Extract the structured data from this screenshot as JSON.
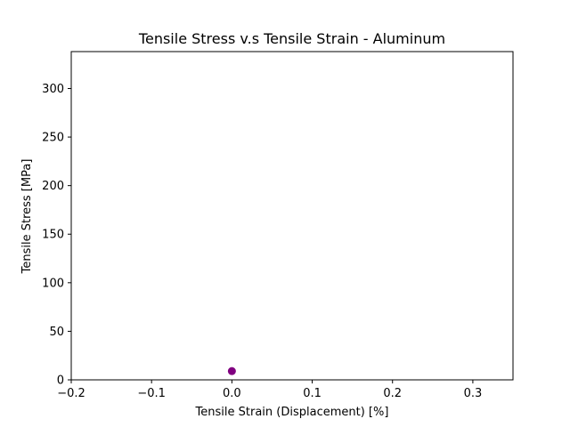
{
  "chart_data": {
    "type": "scatter",
    "title": "Tensile Stress v.s Tensile Strain - Aluminum",
    "xlabel": "Tensile Strain (Displacement) [%]",
    "ylabel": "Tensile Stress [MPa]",
    "xlim": [
      -0.2,
      0.35
    ],
    "ylim": [
      0,
      338
    ],
    "xticks": [
      -0.2,
      -0.1,
      0.0,
      0.1,
      0.2,
      0.3
    ],
    "xtick_labels": [
      "−0.2",
      "−0.1",
      "0.0",
      "0.1",
      "0.2",
      "0.3"
    ],
    "yticks": [
      0,
      50,
      100,
      150,
      200,
      250,
      300
    ],
    "ytick_labels": [
      "0",
      "50",
      "100",
      "150",
      "200",
      "250",
      "300"
    ],
    "grid": false,
    "series": [
      {
        "color": "#800080",
        "points": [
          {
            "x": 0.0,
            "y": 9
          }
        ]
      }
    ]
  }
}
